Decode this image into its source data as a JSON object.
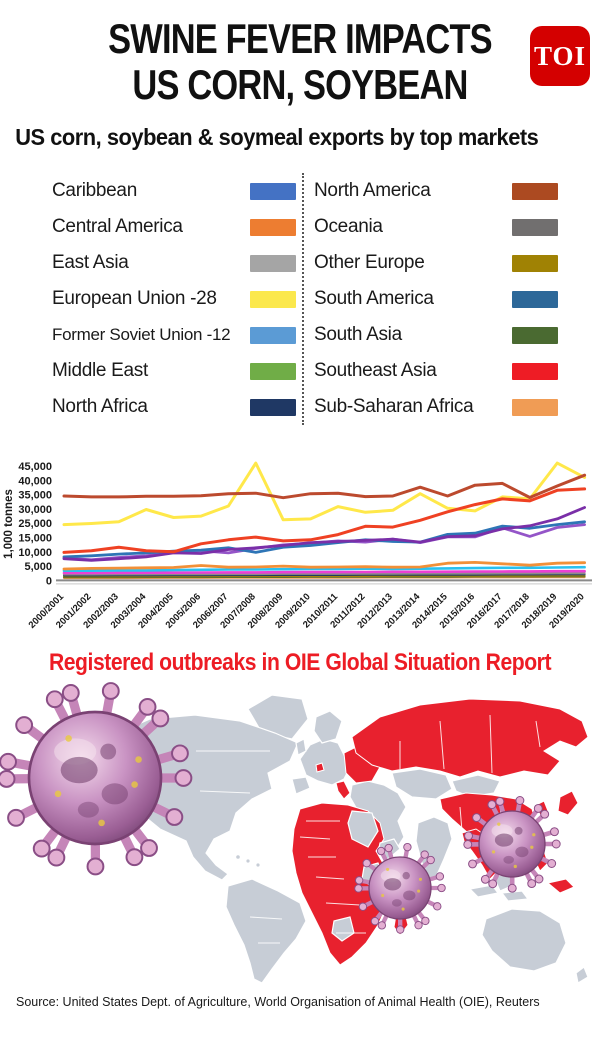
{
  "header": {
    "title_line1": "SWINE FEVER IMPACTS",
    "title_line2": "US CORN, SOYBEAN",
    "logo_text": "TOI",
    "logo_color": "#d40000"
  },
  "subtitle": "US corn, soybean & soymeal exports by top markets",
  "legend": {
    "columns": [
      [
        {
          "label": "Caribbean",
          "color": "#4472C4"
        },
        {
          "label": "Central America",
          "color": "#ED7D31"
        },
        {
          "label": "East Asia",
          "color": "#A5A5A5"
        },
        {
          "label": "European Union -28",
          "color": "#FBE84D"
        },
        {
          "label": "Former Soviet Union -12",
          "color": "#5B9BD5"
        },
        {
          "label": "Middle East",
          "color": "#70AD47"
        },
        {
          "label": "North Africa",
          "color": "#1F3864"
        }
      ],
      [
        {
          "label": "North America",
          "color": "#AC4A21"
        },
        {
          "label": "Oceania",
          "color": "#716F6F"
        },
        {
          "label": "Other Europe",
          "color": "#A08204"
        },
        {
          "label": "South America",
          "color": "#2D6899"
        },
        {
          "label": "South Asia",
          "color": "#4A6A31"
        },
        {
          "label": "Southeast Asia",
          "color": "#EE1C25"
        },
        {
          "label": "Sub-Saharan Africa",
          "color": "#F09C55"
        }
      ]
    ]
  },
  "chart_data": {
    "type": "line",
    "title": "US corn, soybean & soymeal exports by top markets",
    "ylabel": "1,000 tonnes",
    "xlabel": "",
    "grid": false,
    "legend_position": "above",
    "y_tick_labels": [
      "45,000",
      "40,000",
      "35,000",
      "30,000",
      "25,000",
      "15,000",
      "10,000",
      "5,000",
      "0"
    ],
    "y_tick_values": [
      45000,
      40000,
      35000,
      30000,
      25000,
      15000,
      10000,
      5000,
      0
    ],
    "x": [
      "2000/2001",
      "2001/2002",
      "2002/2003",
      "2003/2004",
      "2004/2005",
      "2005/2006",
      "2006/2007",
      "2007/2008",
      "2008/2009",
      "2009/2010",
      "2010/2011",
      "2011/2012",
      "2012/2013",
      "2013/2014",
      "2014/2015",
      "2015/2016",
      "2016/2017",
      "2017/2018",
      "2018/2019",
      "2019/2020"
    ],
    "series": [
      {
        "name": "Sub-Saharan Africa",
        "color": "#F19B57",
        "width": 2.0,
        "values": [
          800,
          800,
          820,
          840,
          860,
          880,
          900,
          900,
          920,
          940,
          960,
          980,
          1000,
          1000,
          1020,
          1040,
          1060,
          1080,
          1100,
          1100
        ]
      },
      {
        "name": "South Asia",
        "color": "#4C6B31",
        "width": 2.0,
        "values": [
          1100,
          1100,
          1100,
          1150,
          1150,
          1150,
          1200,
          1200,
          1200,
          1250,
          1250,
          1250,
          1300,
          1300,
          1300,
          1350,
          1350,
          1350,
          1400,
          1400
        ]
      },
      {
        "name": "Other Europe",
        "color": "#A38408",
        "width": 2.0,
        "values": [
          1400,
          1400,
          1400,
          1450,
          1450,
          1450,
          1500,
          1500,
          1500,
          1550,
          1550,
          1550,
          1600,
          1600,
          1600,
          1650,
          1650,
          1650,
          1700,
          1700
        ]
      },
      {
        "name": "North Africa",
        "color": "#203864",
        "width": 2.0,
        "values": [
          1700,
          1700,
          1750,
          1750,
          1800,
          1800,
          1850,
          1850,
          1900,
          1900,
          1900,
          1950,
          1950,
          2000,
          2000,
          2000,
          2050,
          2050,
          2100,
          2100
        ]
      },
      {
        "name": "Oceania",
        "color": "#8C8C8C",
        "width": 2.2,
        "values": [
          2100,
          2100,
          2150,
          2150,
          2200,
          2200,
          2250,
          2250,
          2300,
          2300,
          2300,
          2350,
          2350,
          2400,
          2400,
          2400,
          2450,
          2450,
          2500,
          2500
        ]
      },
      {
        "name": "Caribbean",
        "color": "#EC3FD4",
        "width": 2.6,
        "values": [
          2600,
          2600,
          2650,
          2700,
          2700,
          2750,
          2800,
          2800,
          2850,
          2900,
          2900,
          2950,
          3000,
          3000,
          3050,
          3100,
          3100,
          3150,
          3200,
          3200
        ]
      },
      {
        "name": "Former Soviet Union -12",
        "color": "#29C0F0",
        "width": 2.6,
        "values": [
          3400,
          3400,
          3500,
          3500,
          3600,
          3700,
          3800,
          3800,
          3900,
          4000,
          4000,
          4100,
          4000,
          4100,
          4200,
          4300,
          4400,
          4400,
          4500,
          4600
        ]
      },
      {
        "name": "Central America",
        "color": "#F29038",
        "width": 2.8,
        "values": [
          4000,
          4200,
          4300,
          4400,
          4500,
          5200,
          4600,
          4700,
          5000,
          4600,
          4700,
          4800,
          4600,
          4700,
          6000,
          6300,
          5800,
          5300,
          6000,
          6200
        ]
      },
      {
        "name": "Middle East",
        "color": "#9455C8",
        "width": 2.8,
        "values": [
          7800,
          7200,
          8000,
          8600,
          9800,
          10400,
          9600,
          11200,
          12400,
          13000,
          13800,
          13400,
          14400,
          13200,
          15400,
          15400,
          21800,
          15800,
          22000,
          24000
        ]
      },
      {
        "name": "South America",
        "color": "#2E75B6",
        "width": 2.8,
        "values": [
          8200,
          8600,
          9200,
          9600,
          10200,
          10600,
          11400,
          9800,
          11600,
          12200,
          13200,
          14200,
          13600,
          13400,
          17200,
          18000,
          23000,
          21400,
          24000,
          25500
        ]
      },
      {
        "name": "East Asia",
        "color": "#7A2FA8",
        "width": 2.8,
        "values": [
          7600,
          7000,
          7600,
          8200,
          9600,
          9400,
          10800,
          11400,
          12200,
          13200,
          13600,
          14000,
          14400,
          13400,
          15600,
          16200,
          21000,
          23200,
          26500,
          30500
        ]
      },
      {
        "name": "European Union -28",
        "color": "#FFE84A",
        "width": 3.0,
        "values": [
          24000,
          24800,
          25500,
          29800,
          27000,
          27500,
          31000,
          46000,
          26200,
          26500,
          30800,
          28800,
          29500,
          35300,
          30200,
          29300,
          34200,
          33500,
          46000,
          41000
        ]
      },
      {
        "name": "Southeast Asia",
        "color": "#EF4123",
        "width": 3.0,
        "values": [
          9800,
          10400,
          11600,
          10400,
          10000,
          12800,
          14200,
          15300,
          13800,
          14200,
          17000,
          22800,
          22300,
          26000,
          29000,
          31500,
          33500,
          32800,
          36500,
          37000
        ]
      },
      {
        "name": "North America",
        "color": "#BC4A2E",
        "width": 3.0,
        "values": [
          34500,
          34200,
          34200,
          34400,
          34400,
          34600,
          35300,
          35500,
          33900,
          35300,
          35500,
          34300,
          34500,
          37600,
          34500,
          38300,
          38900,
          34000,
          38000,
          41800
        ]
      }
    ]
  },
  "map_section": {
    "heading": "Registered outbreaks in OIE Global Situation Report",
    "heading_color": "#ED1C24",
    "land_color": "#C7CDD6",
    "outbreak_color": "#E8212E",
    "virus_icon_name": "swine-fever-virus-icon"
  },
  "footer": {
    "source": "Source: United States Dept. of Agriculture, World Organisation of Animal Health (OIE), Reuters"
  }
}
